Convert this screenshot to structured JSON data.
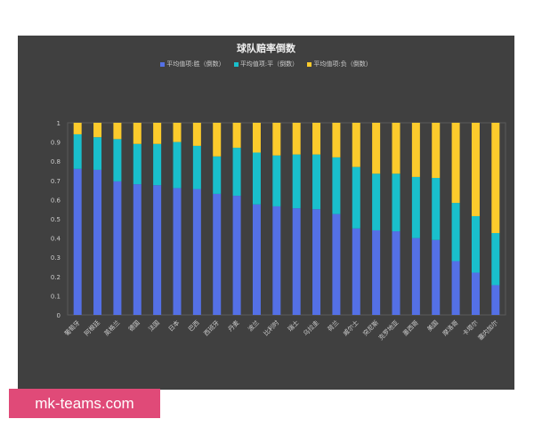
{
  "chart_data": {
    "type": "bar",
    "stacked": true,
    "title": "球队赔率倒数",
    "categories": [
      "葡萄牙",
      "阿根廷",
      "英格兰",
      "德国",
      "法国",
      "日本",
      "巴西",
      "西班牙",
      "丹麦",
      "波兰",
      "比利时",
      "瑞士",
      "乌拉圭",
      "荷兰",
      "威尔士",
      "突尼斯",
      "克罗地亚",
      "墨西哥",
      "美国",
      "摩洛哥",
      "卡塔尔",
      "塞内加尔"
    ],
    "series": [
      {
        "name": "平均值项:胜（倒数）",
        "color": "#5470e6",
        "values": [
          0.76,
          0.755,
          0.695,
          0.68,
          0.675,
          0.66,
          0.655,
          0.63,
          0.62,
          0.575,
          0.565,
          0.555,
          0.55,
          0.525,
          0.45,
          0.44,
          0.435,
          0.4,
          0.39,
          0.28,
          0.22,
          0.155
        ]
      },
      {
        "name": "平均值项:平（倒数）",
        "color": "#19bfcc",
        "values": [
          0.18,
          0.17,
          0.22,
          0.21,
          0.215,
          0.24,
          0.225,
          0.195,
          0.25,
          0.27,
          0.265,
          0.28,
          0.285,
          0.295,
          0.32,
          0.295,
          0.3,
          0.318,
          0.323,
          0.303,
          0.294,
          0.271
        ]
      },
      {
        "name": "平均值项:负（倒数）",
        "color": "#fccb2c",
        "values": [
          0.06,
          0.075,
          0.085,
          0.11,
          0.11,
          0.1,
          0.12,
          0.175,
          0.13,
          0.155,
          0.17,
          0.165,
          0.165,
          0.18,
          0.23,
          0.265,
          0.265,
          0.282,
          0.287,
          0.417,
          0.486,
          0.574
        ]
      }
    ],
    "ylim": [
      0,
      1
    ],
    "yticks": [
      "0",
      "0.1",
      "0.2",
      "0.3",
      "0.4",
      "0.5",
      "0.6",
      "0.7",
      "0.8",
      "0.9",
      "1"
    ],
    "grid": false,
    "legend": "top"
  },
  "watermark": "mk-teams.com"
}
